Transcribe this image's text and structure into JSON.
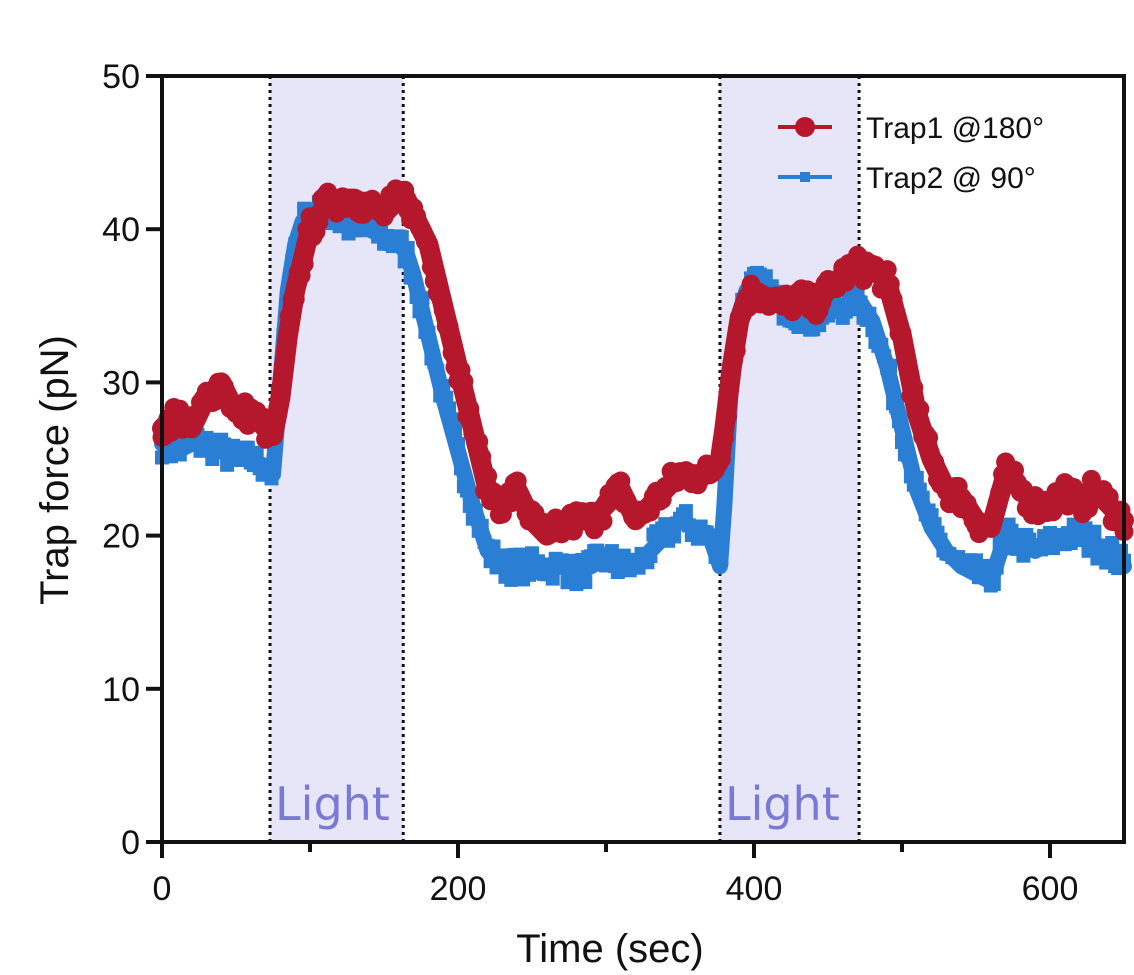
{
  "chart_data": {
    "type": "line",
    "xlabel": "Time (sec)",
    "ylabel": "Trap force (pN)",
    "xlim": [
      0,
      650
    ],
    "ylim": [
      0,
      50
    ],
    "x_ticks": [
      0,
      200,
      400,
      600
    ],
    "x_minor_ticks": [
      100,
      300,
      500
    ],
    "y_ticks": [
      0,
      10,
      20,
      30,
      40,
      50
    ],
    "grid": false,
    "legend_position": "top-right",
    "light_periods": [
      {
        "label": "Light",
        "start": 73,
        "end": 163
      },
      {
        "label": "Light",
        "start": 377,
        "end": 471
      }
    ],
    "series": [
      {
        "name": "Trap1 @180°",
        "color": "#b5182c",
        "marker": "circle",
        "x": [
          0,
          10,
          20,
          30,
          40,
          50,
          60,
          70,
          75,
          80,
          85,
          90,
          95,
          100,
          110,
          120,
          130,
          140,
          150,
          160,
          165,
          170,
          180,
          190,
          200,
          210,
          220,
          230,
          240,
          250,
          260,
          270,
          280,
          290,
          300,
          310,
          320,
          330,
          340,
          350,
          360,
          370,
          377,
          380,
          385,
          390,
          395,
          400,
          410,
          420,
          430,
          440,
          450,
          460,
          470,
          480,
          490,
          500,
          510,
          520,
          530,
          540,
          550,
          560,
          570,
          580,
          590,
          600,
          610,
          620,
          630,
          640,
          650
        ],
        "y": [
          27,
          28,
          27,
          29,
          30,
          28,
          28,
          27,
          26.5,
          29,
          33,
          36,
          38,
          40,
          41.5,
          42,
          42,
          41.5,
          41,
          42,
          42,
          41,
          39,
          35,
          31,
          27,
          23,
          22,
          23,
          21,
          20,
          20.5,
          21,
          21,
          22,
          23,
          21,
          22,
          23,
          24,
          24,
          24,
          25,
          27,
          31,
          34,
          35.5,
          36,
          35.5,
          35,
          35.5,
          35,
          36,
          37,
          37.5,
          37.5,
          36.5,
          33,
          28,
          25,
          23,
          22.5,
          21,
          20.5,
          24,
          23,
          22,
          22,
          23,
          22,
          23,
          22,
          21
        ]
      },
      {
        "name": "Trap2 @ 90°",
        "color": "#2a7fd4",
        "marker": "square",
        "x": [
          0,
          10,
          20,
          30,
          40,
          50,
          60,
          70,
          75,
          80,
          85,
          90,
          95,
          100,
          110,
          120,
          130,
          140,
          150,
          160,
          165,
          170,
          180,
          190,
          200,
          210,
          220,
          230,
          240,
          250,
          260,
          270,
          280,
          290,
          300,
          310,
          320,
          330,
          340,
          350,
          360,
          370,
          377,
          380,
          385,
          390,
          395,
          400,
          410,
          420,
          430,
          440,
          450,
          460,
          470,
          480,
          490,
          500,
          510,
          520,
          530,
          540,
          550,
          560,
          570,
          580,
          590,
          600,
          610,
          620,
          630,
          640,
          650
        ],
        "y": [
          26,
          25.5,
          26,
          26,
          25.5,
          25,
          25,
          24.5,
          24,
          30,
          36,
          39,
          40.5,
          41,
          41,
          40.5,
          40,
          40,
          39.5,
          39,
          38.5,
          37,
          33,
          29,
          25.5,
          22,
          19,
          18,
          18,
          18,
          18,
          18,
          17.5,
          18,
          18.5,
          18,
          18,
          19,
          20,
          21,
          20.5,
          20,
          18,
          22,
          31,
          34.5,
          36,
          36.5,
          36,
          35,
          34.5,
          34,
          34.5,
          35,
          35.5,
          34,
          31,
          27,
          23,
          20.5,
          19,
          18,
          17.5,
          17,
          20,
          19.5,
          19,
          19.5,
          20,
          20,
          19.5,
          19,
          18
        ]
      }
    ]
  }
}
